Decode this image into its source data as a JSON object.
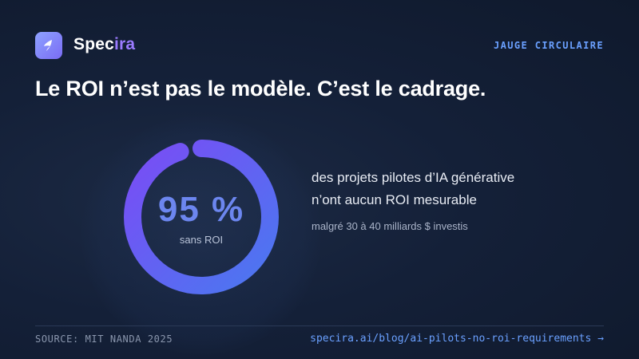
{
  "brand": {
    "name_part1": "Spec",
    "name_part2": "ira",
    "accent_color": "#9b7bff"
  },
  "header": {
    "tag": "JAUGE CIRCULAIRE"
  },
  "headline": "Le ROI n’est pas le modèle. C’est le cadrage.",
  "gauge": {
    "value_label": "95 %",
    "percent": 95,
    "caption": "sans ROI",
    "gradient_colors": [
      "#7a4cf5",
      "#4a78f0"
    ],
    "track_color": "#1e2c48"
  },
  "description": {
    "line1": "des projets pilotes d’IA générative",
    "line2": "n’ont aucun ROI mesurable",
    "subtext": "malgré 30 à 40 milliards $ investis"
  },
  "footer": {
    "source": "SOURCE: MIT NANDA 2025",
    "link": "specira.ai/blog/ai-pilots-no-roi-requirements →"
  }
}
